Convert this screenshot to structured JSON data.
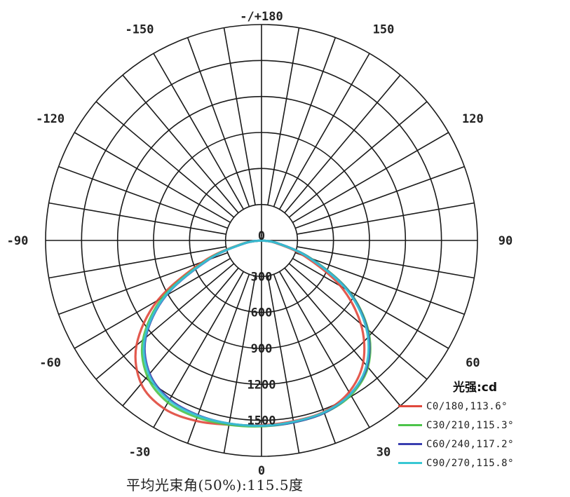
{
  "chart_data": {
    "type": "polar",
    "title": "",
    "angle_tick_labels": [
      {
        "angle": 0,
        "label": "0"
      },
      {
        "angle": 30,
        "label": "30"
      },
      {
        "angle": 60,
        "label": "60"
      },
      {
        "angle": 90,
        "label": "90"
      },
      {
        "angle": 120,
        "label": "120"
      },
      {
        "angle": 150,
        "label": "150"
      },
      {
        "angle": 180,
        "label": "-/+180"
      },
      {
        "angle": -150,
        "label": "-150"
      },
      {
        "angle": -120,
        "label": "-120"
      },
      {
        "angle": -90,
        "label": "-90"
      },
      {
        "angle": -60,
        "label": "-60"
      },
      {
        "angle": -30,
        "label": "-30"
      }
    ],
    "radial_ticks": [
      300,
      600,
      900,
      1200,
      1500
    ],
    "radial_tick_labels": [
      "300",
      "600",
      "900",
      "1200",
      "1500"
    ],
    "center_label": "0",
    "rlim": [
      0,
      1800
    ],
    "angular_grid_step_deg": 10,
    "unit_label": "光强:cd",
    "series": [
      {
        "name": "C0/180,113.6°",
        "color": "#e0483c",
        "angles": [
          -90,
          -80,
          -70,
          -60,
          -50,
          -40,
          -30,
          -20,
          -10,
          0,
          10,
          20,
          30,
          40,
          50,
          60,
          70,
          80,
          90
        ],
        "values": [
          0,
          170,
          520,
          1000,
          1360,
          1560,
          1620,
          1600,
          1560,
          1540,
          1530,
          1520,
          1460,
          1320,
          1080,
          760,
          380,
          120,
          0
        ]
      },
      {
        "name": "C30/210,115.3°",
        "color": "#4cc44a",
        "angles": [
          -90,
          -80,
          -70,
          -60,
          -50,
          -40,
          -30,
          -20,
          -10,
          0,
          10,
          20,
          30,
          40,
          50,
          60,
          70,
          80,
          90
        ],
        "values": [
          0,
          160,
          490,
          950,
          1290,
          1480,
          1560,
          1570,
          1560,
          1550,
          1540,
          1530,
          1490,
          1380,
          1160,
          840,
          440,
          140,
          0
        ]
      },
      {
        "name": "C60/240,117.2°",
        "color": "#3a3fb0",
        "angles": [
          -90,
          -80,
          -70,
          -60,
          -50,
          -40,
          -30,
          -20,
          -10,
          0,
          10,
          20,
          30,
          40,
          50,
          60,
          70,
          80,
          90
        ],
        "values": [
          0,
          150,
          470,
          920,
          1260,
          1450,
          1530,
          1550,
          1550,
          1545,
          1540,
          1530,
          1480,
          1370,
          1150,
          830,
          430,
          140,
          0
        ]
      },
      {
        "name": "C90/270,115.8°",
        "color": "#38c7d4",
        "angles": [
          -90,
          -80,
          -70,
          -60,
          -50,
          -40,
          -30,
          -20,
          -10,
          0,
          10,
          20,
          30,
          40,
          50,
          60,
          70,
          80,
          90
        ],
        "values": [
          0,
          155,
          480,
          930,
          1270,
          1460,
          1540,
          1555,
          1550,
          1545,
          1535,
          1525,
          1480,
          1360,
          1140,
          820,
          420,
          135,
          0
        ]
      }
    ],
    "legend_position": "bottom-right",
    "grid": true
  },
  "footnote": "平均光束角(50%):115.5度"
}
